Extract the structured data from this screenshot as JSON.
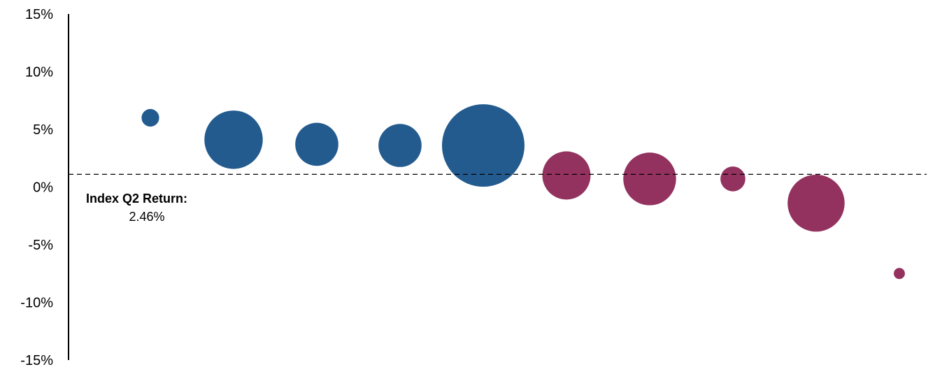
{
  "chart_data": {
    "type": "scatter",
    "title": "",
    "xlabel": "",
    "ylabel": "",
    "ylim": [
      -15,
      15
    ],
    "y_ticks": [
      "15%",
      "10%",
      "5%",
      "0%",
      "-5%",
      "-10%",
      "-15%"
    ],
    "y_tick_values": [
      15,
      10,
      5,
      0,
      -5,
      -10,
      -15
    ],
    "grid": false,
    "reference_line": {
      "value": 1.1,
      "style": "dashed"
    },
    "annotation": {
      "title": "Index Q2 Return:",
      "value": "2.46%"
    },
    "colors": {
      "above": "#245b8f",
      "below": "#94325f"
    },
    "series": [
      {
        "points": [
          {
            "x": 1,
            "y": 6.0,
            "size": 1.0,
            "color": "#245b8f"
          },
          {
            "x": 2,
            "y": 4.1,
            "size": 11.0,
            "color": "#245b8f"
          },
          {
            "x": 3,
            "y": 3.7,
            "size": 6.0,
            "color": "#245b8f"
          },
          {
            "x": 4,
            "y": 3.6,
            "size": 6.0,
            "color": "#245b8f"
          },
          {
            "x": 5,
            "y": 3.6,
            "size": 22.0,
            "color": "#245b8f"
          },
          {
            "x": 6,
            "y": 1.0,
            "size": 7.5,
            "color": "#94325f"
          },
          {
            "x": 7,
            "y": 0.7,
            "size": 9.0,
            "color": "#94325f"
          },
          {
            "x": 8,
            "y": 0.7,
            "size": 2.0,
            "color": "#94325f"
          },
          {
            "x": 9,
            "y": -1.4,
            "size": 10.5,
            "color": "#94325f"
          },
          {
            "x": 10,
            "y": -7.5,
            "size": 0.4,
            "color": "#94325f"
          }
        ]
      }
    ]
  }
}
